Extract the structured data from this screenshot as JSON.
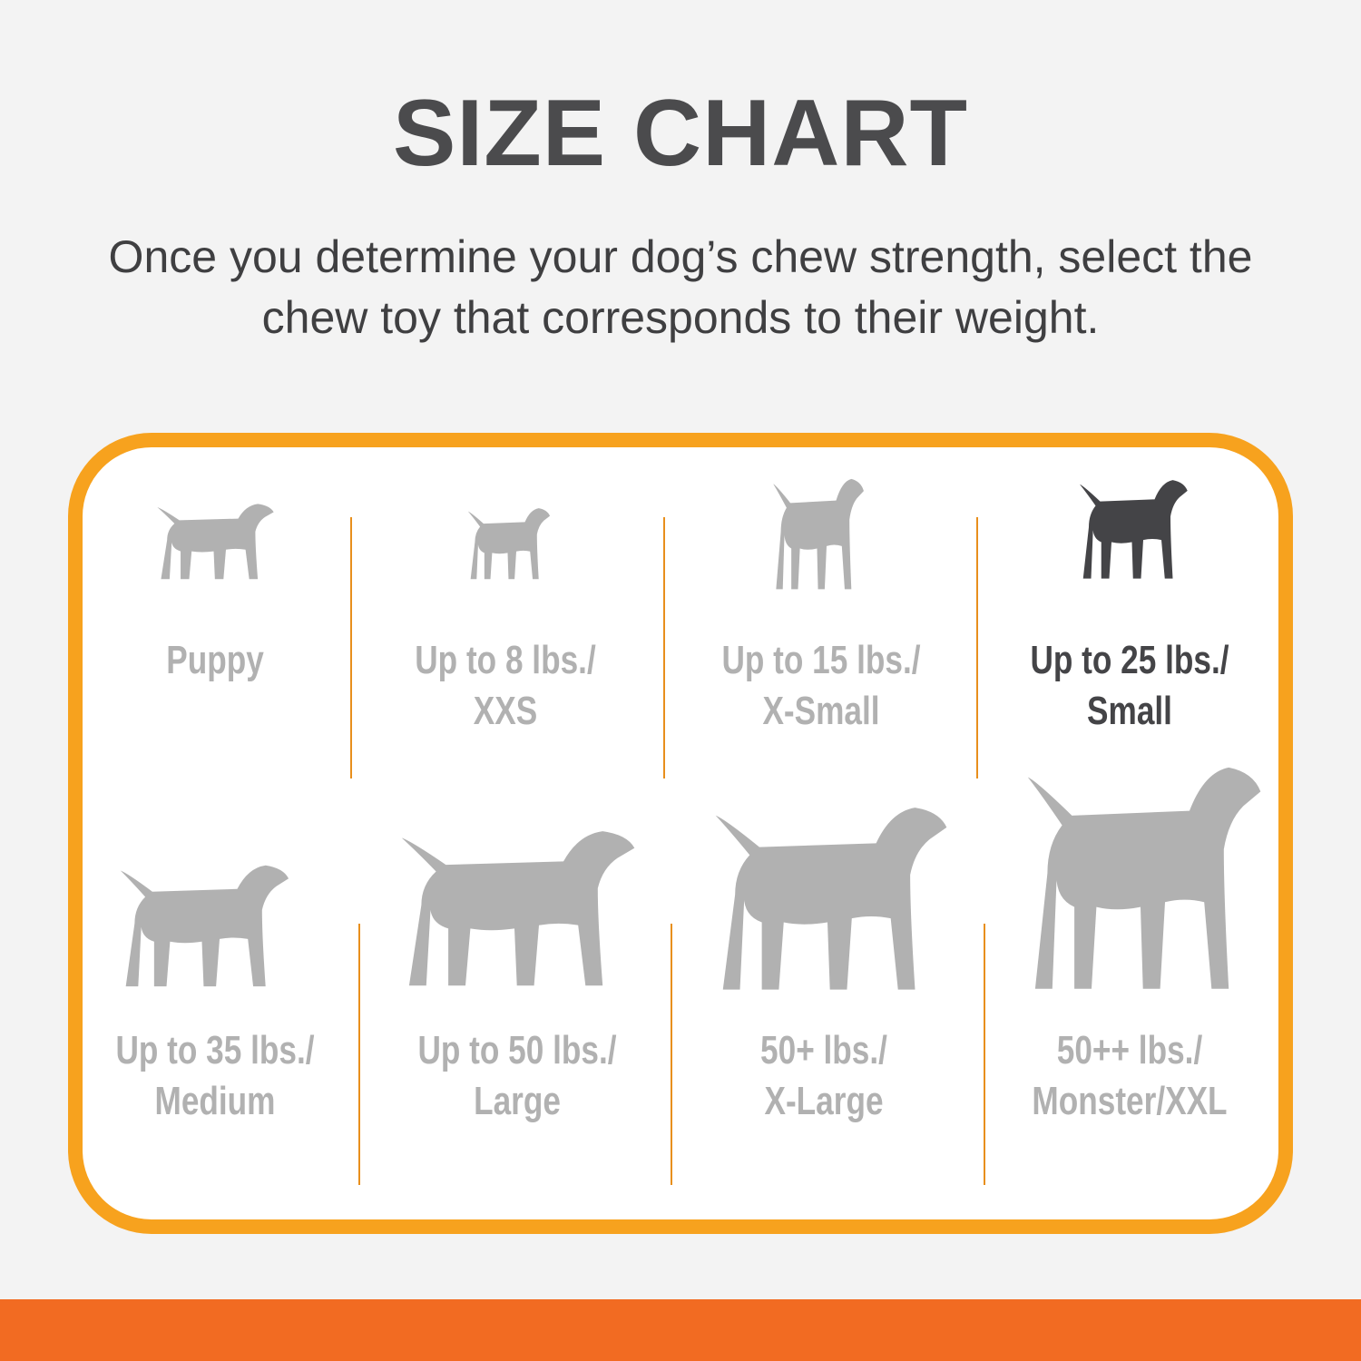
{
  "title": "SIZE CHART",
  "subtitle": [
    "Once you determine your dog’s chew strength, select the",
    "chew toy that corresponds to their weight."
  ],
  "colors": {
    "border": "#f7a21e",
    "bottom_bar": "#f26b22",
    "inactive": "#b1b1b1",
    "active": "#444447"
  },
  "sizes": [
    {
      "line1": "Puppy",
      "line2": "",
      "icon": "puppy-icon",
      "active": false
    },
    {
      "line1": "Up to 8 lbs./",
      "line2": "XXS",
      "icon": "chihuahua-icon",
      "active": false
    },
    {
      "line1": "Up to 15 lbs./",
      "line2": "X-Small",
      "icon": "toy-terrier-icon",
      "active": false
    },
    {
      "line1": "Up to 25 lbs./",
      "line2": "Small",
      "icon": "terrier-icon",
      "active": true
    },
    {
      "line1": "Up to 35 lbs./",
      "line2": "Medium",
      "icon": "beagle-icon",
      "active": false
    },
    {
      "line1": "Up to 50 lbs./",
      "line2": "Large",
      "icon": "labrador-icon",
      "active": false
    },
    {
      "line1": "50+ lbs./",
      "line2": "X-Large",
      "icon": "shepherd-icon",
      "active": false
    },
    {
      "line1": "50++ lbs./",
      "line2": "Monster/XXL",
      "icon": "great-dane-icon",
      "active": false
    }
  ]
}
